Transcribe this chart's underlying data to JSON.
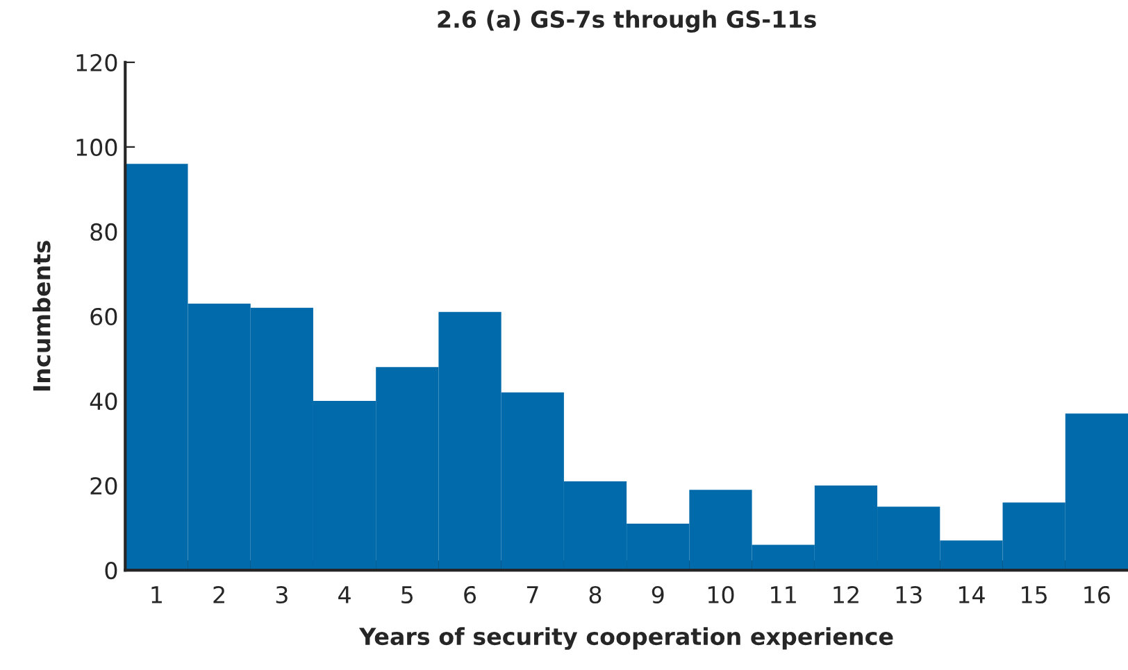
{
  "chart_data": {
    "type": "bar",
    "title": "2.6 (a) GS-7s through GS-11s",
    "xlabel": "Years of security cooperation experience",
    "ylabel": "Incumbents",
    "categories": [
      "1",
      "2",
      "3",
      "4",
      "5",
      "6",
      "7",
      "8",
      "9",
      "10",
      "11",
      "12",
      "13",
      "14",
      "15",
      "16"
    ],
    "values": [
      96,
      63,
      62,
      40,
      48,
      61,
      42,
      21,
      11,
      19,
      6,
      20,
      15,
      7,
      16,
      37
    ],
    "color": "#006aaa",
    "ylim": [
      0,
      120
    ],
    "yticks": [
      0,
      20,
      40,
      60,
      80,
      100,
      120
    ],
    "grid": false,
    "legend": false
  }
}
